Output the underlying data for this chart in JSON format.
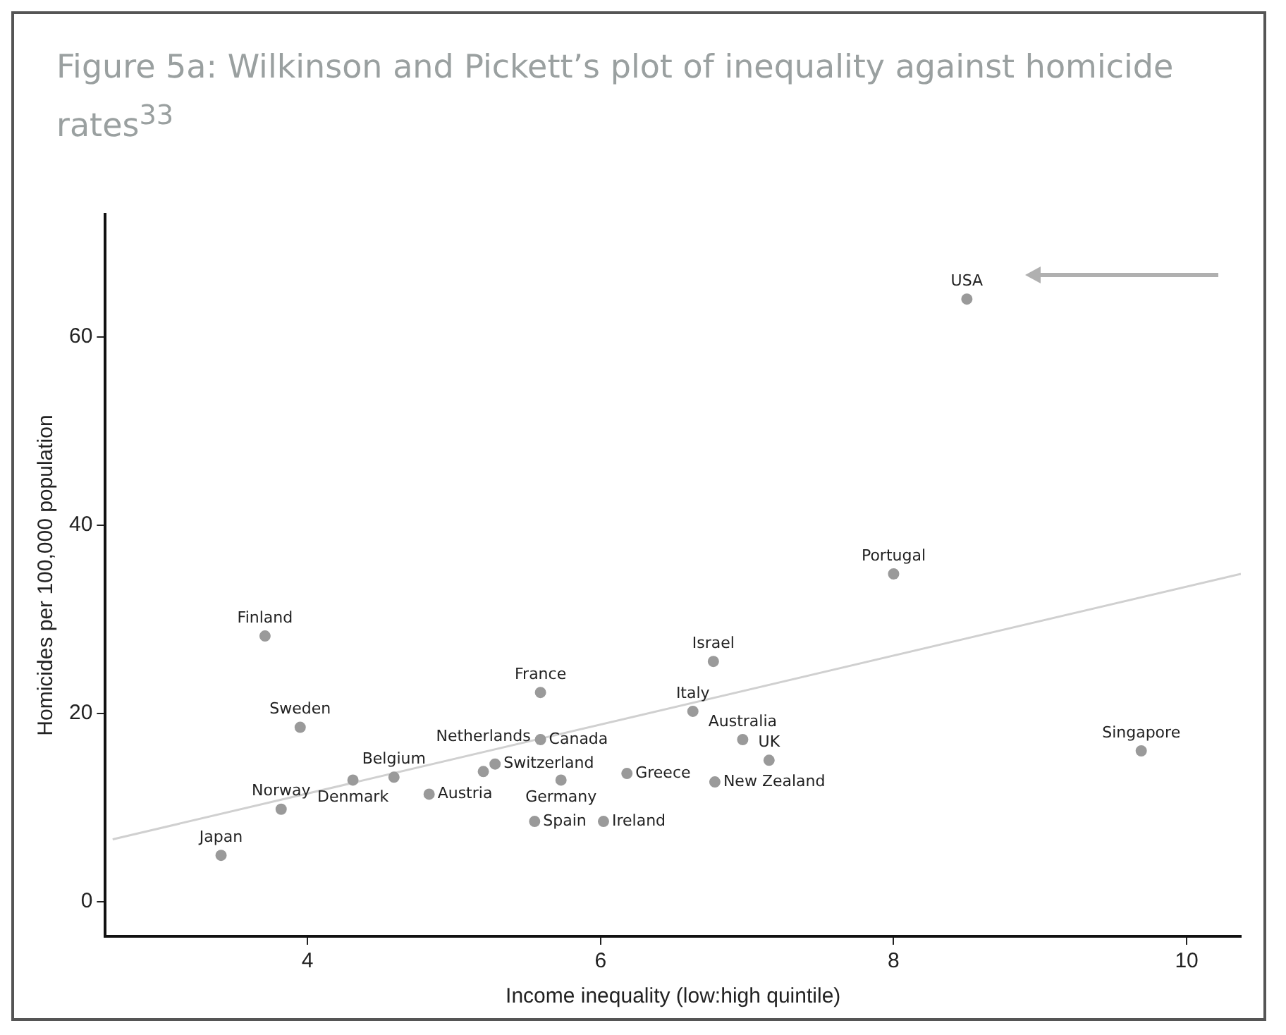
{
  "chart_data": {
    "type": "scatter",
    "title": "Figure 5a: Wilkinson and Pickett’s plot of inequality against homicide rates$^{33}$",
    "xlabel": "Income inequality (low:high quintile)",
    "ylabel": "Homicides per 100,000 population",
    "xlim": [
      2.62,
      10.37
    ],
    "ylim": [
      -3.7,
      73
    ],
    "xticks": [
      4,
      6,
      8,
      10
    ],
    "yticks": [
      0,
      20,
      40,
      60
    ],
    "grid": false,
    "legend": false,
    "marker": "circle",
    "series": [
      {
        "color": "#9a9a9a",
        "x": [
          3.41,
          3.82,
          3.71,
          3.95,
          4.31,
          4.59,
          4.83,
          5.2,
          5.28,
          5.73,
          5.59,
          5.59,
          5.55,
          6.02,
          6.18,
          6.77,
          6.63,
          6.97,
          7.15,
          6.78,
          8.0,
          8.5,
          9.69
        ],
        "values": [
          4.9,
          9.8,
          28.2,
          18.5,
          12.9,
          13.2,
          11.4,
          13.8,
          14.6,
          12.9,
          17.2,
          22.2,
          8.5,
          8.5,
          13.6,
          25.5,
          20.2,
          17.2,
          15.0,
          12.7,
          34.8,
          64.0,
          16.0
        ]
      },
      {
        "type": "line",
        "color": "#d0d0d0",
        "x": [
          2.67,
          10.37
        ],
        "values": [
          6.6,
          34.8
        ],
        "marker": "none"
      }
    ],
    "annotations": [
      {
        "text": "Japan",
        "x": 3.41,
        "y": 4.9
      },
      {
        "text": "Norway",
        "x": 3.82,
        "y": 9.8
      },
      {
        "text": "Finland",
        "x": 3.71,
        "y": 28.2
      },
      {
        "text": "Sweden",
        "x": 3.95,
        "y": 18.5
      },
      {
        "text": "Denmark",
        "x": 4.31,
        "y": 12.9
      },
      {
        "text": "Belgium",
        "x": 4.59,
        "y": 13.2
      },
      {
        "text": "Austria",
        "x": 4.83,
        "y": 11.4
      },
      {
        "text": "Netherlands",
        "x": 5.2,
        "y": 13.8
      },
      {
        "text": "Switzerland",
        "x": 5.28,
        "y": 14.6
      },
      {
        "text": "Germany",
        "x": 5.73,
        "y": 12.9
      },
      {
        "text": "Canada",
        "x": 5.59,
        "y": 17.2
      },
      {
        "text": "France",
        "x": 5.59,
        "y": 22.2
      },
      {
        "text": "Spain",
        "x": 5.55,
        "y": 8.5
      },
      {
        "text": "Ireland",
        "x": 6.02,
        "y": 8.5
      },
      {
        "text": "Greece",
        "x": 6.18,
        "y": 13.6
      },
      {
        "text": "Israel",
        "x": 6.77,
        "y": 25.5
      },
      {
        "text": "Italy",
        "x": 6.63,
        "y": 20.2
      },
      {
        "text": "Australia",
        "x": 6.97,
        "y": 17.2
      },
      {
        "text": "UK",
        "x": 7.15,
        "y": 15.0
      },
      {
        "text": "New Zealand",
        "x": 6.78,
        "y": 12.7
      },
      {
        "text": "Portugal",
        "x": 8.0,
        "y": 34.8
      },
      {
        "text": "USA",
        "x": 8.5,
        "y": 64.0
      },
      {
        "text": "Singapore",
        "x": 9.69,
        "y": 16.0
      }
    ]
  }
}
